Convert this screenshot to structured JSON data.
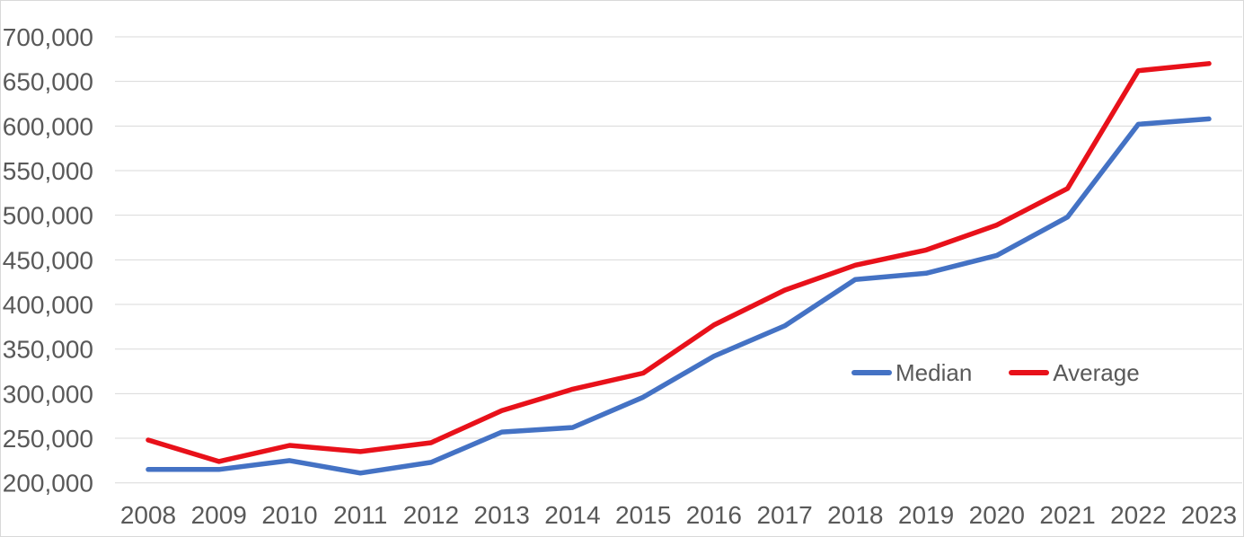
{
  "chart_data": {
    "type": "line",
    "title": "",
    "xlabel": "",
    "ylabel": "",
    "x": [
      2008,
      2009,
      2010,
      2011,
      2012,
      2013,
      2014,
      2015,
      2016,
      2017,
      2018,
      2019,
      2020,
      2021,
      2022,
      2023
    ],
    "series": [
      {
        "name": "Median",
        "color": "#4472C4",
        "values": [
          215000,
          215000,
          225000,
          211000,
          223000,
          257000,
          262000,
          296000,
          342000,
          376000,
          428000,
          435000,
          455000,
          498000,
          602000,
          608000
        ]
      },
      {
        "name": "Average",
        "color": "#E8111A",
        "values": [
          248000,
          224000,
          242000,
          235000,
          245000,
          281000,
          305000,
          323000,
          377000,
          416000,
          444000,
          461000,
          489000,
          530000,
          662000,
          670000
        ]
      }
    ],
    "ylim": [
      200000,
      700000
    ],
    "yticks": [
      {
        "value": 200000,
        "label": "200,000"
      },
      {
        "value": 250000,
        "label": "250,000"
      },
      {
        "value": 300000,
        "label": "300,000"
      },
      {
        "value": 350000,
        "label": "350,000"
      },
      {
        "value": 400000,
        "label": "400,000"
      },
      {
        "value": 450000,
        "label": "450,000"
      },
      {
        "value": 500000,
        "label": "500,000"
      },
      {
        "value": 550000,
        "label": "550,000"
      },
      {
        "value": 600000,
        "label": "600,000"
      },
      {
        "value": 650000,
        "label": "650,000"
      },
      {
        "value": 700000,
        "label": "700,000"
      }
    ],
    "grid": true,
    "legend_position": "inside-right"
  },
  "colors": {
    "background": "#FFFFFF",
    "chart_border": "#D9D9D9",
    "gridline": "#D9D9D9",
    "axis_text": "#595959"
  }
}
